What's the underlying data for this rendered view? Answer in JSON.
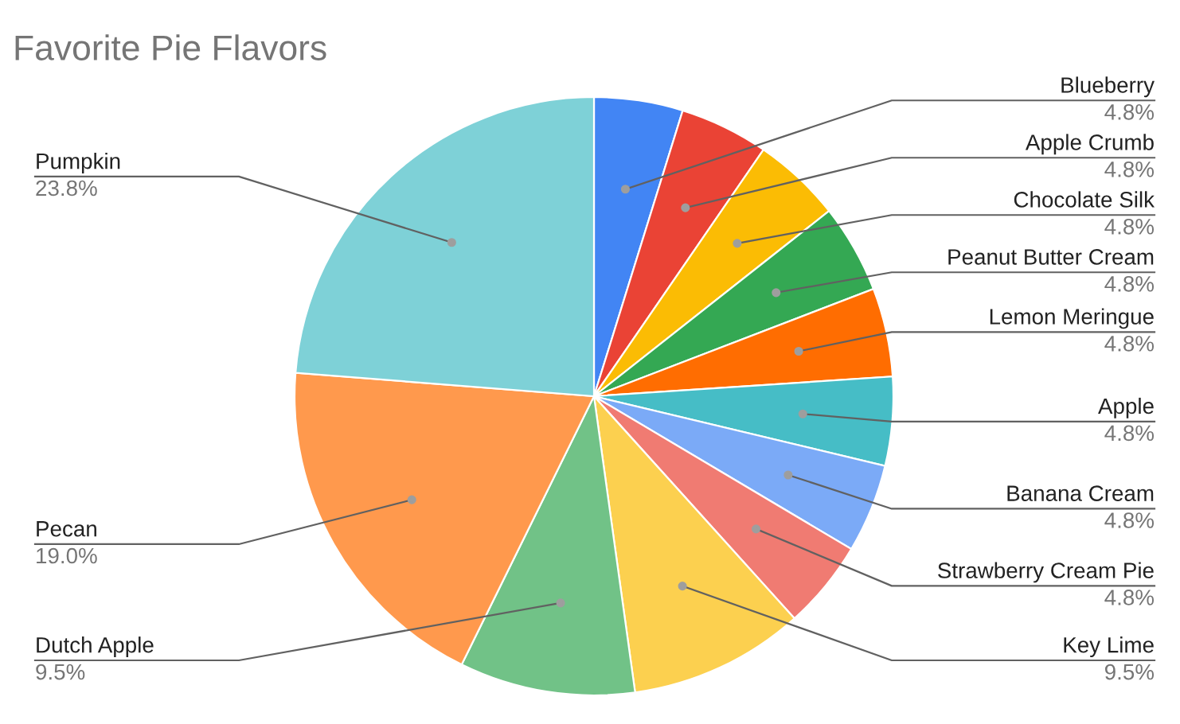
{
  "chart_data": {
    "type": "pie",
    "title": "Favorite Pie Flavors",
    "categories": [
      "Blueberry",
      "Apple Crumb",
      "Chocolate Silk",
      "Peanut Butter Cream",
      "Lemon Meringue",
      "Apple",
      "Banana Cream",
      "Strawberry Cream Pie",
      "Key Lime",
      "Dutch Apple",
      "Pecan",
      "Pumpkin"
    ],
    "values": [
      4.8,
      4.8,
      4.8,
      4.8,
      4.8,
      4.8,
      4.8,
      4.8,
      9.5,
      9.5,
      19.0,
      23.8
    ],
    "colors": [
      "#4285f4",
      "#ea4335",
      "#fbbc04",
      "#34a853",
      "#ff6d01",
      "#46bdc6",
      "#7baaf7",
      "#f07b72",
      "#fcd04f",
      "#71c287",
      "#ff994d",
      "#7ed1d7"
    ],
    "value_labels": [
      "4.8%",
      "4.8%",
      "4.8%",
      "4.8%",
      "4.8%",
      "4.8%",
      "4.8%",
      "4.8%",
      "9.5%",
      "9.5%",
      "19.0%",
      "23.8%"
    ],
    "legend": false
  }
}
